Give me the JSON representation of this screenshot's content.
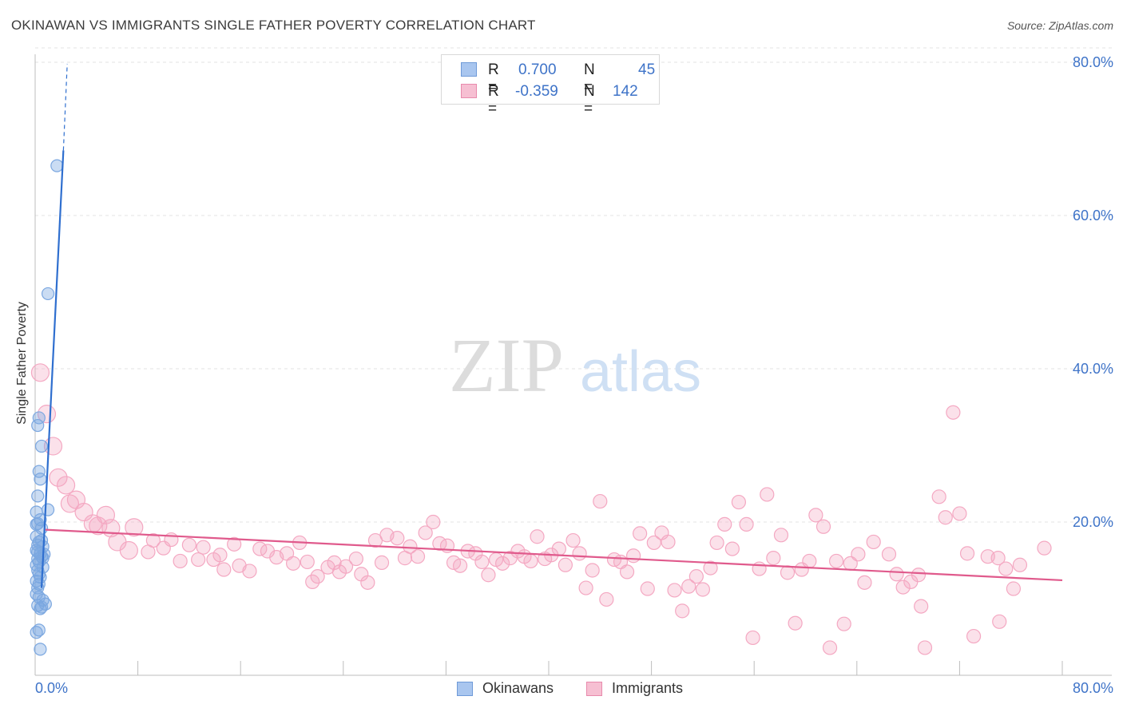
{
  "header": {
    "title": "OKINAWAN VS IMMIGRANTS SINGLE FATHER POVERTY CORRELATION CHART",
    "source": "Source: ZipAtlas.com"
  },
  "watermark": {
    "zip": "ZIP",
    "atlas": "atlas"
  },
  "legend": {
    "rows": [
      {
        "r_label": "R =",
        "r_value": "0.700",
        "n_label": "N =",
        "n_value": "45",
        "color": "#a9c6ef",
        "border": "#6f9ad8"
      },
      {
        "r_label": "R =",
        "r_value": "-0.359",
        "n_label": "N =",
        "n_value": "142",
        "color": "#f6bfd2",
        "border": "#e88aac"
      }
    ]
  },
  "bottom_legend": {
    "okinawans": "Okinawans",
    "immigrants": "Immigrants"
  },
  "chart_data": {
    "type": "scatter",
    "title": "OKINAWAN VS IMMIGRANTS SINGLE FATHER POVERTY CORRELATION CHART",
    "xlabel": "",
    "ylabel": "Single Father Poverty",
    "xlim": [
      0,
      80
    ],
    "ylim": [
      0,
      80
    ],
    "x_tick_labels": [
      "0.0%",
      "80.0%"
    ],
    "y_tick_labels": [
      "20.0%",
      "40.0%",
      "60.0%",
      "80.0%"
    ],
    "y_tick_values": [
      20,
      40,
      60,
      80
    ],
    "grid": true,
    "series": [
      {
        "name": "Okinawans",
        "color": "#7ba7e0",
        "line_color": "#2f6fcf",
        "trend": {
          "x": [
            0.5,
            2.2
          ],
          "y": [
            11.4,
            68.5
          ],
          "dashed_to": [
            2.5,
            79.8
          ]
        },
        "points": [
          [
            1.7,
            66.5
          ],
          [
            1.0,
            49.8
          ],
          [
            0.3,
            33.6
          ],
          [
            0.2,
            32.6
          ],
          [
            0.5,
            29.9
          ],
          [
            0.3,
            26.6
          ],
          [
            0.4,
            25.6
          ],
          [
            0.2,
            23.4
          ],
          [
            1.0,
            21.6
          ],
          [
            0.1,
            21.3
          ],
          [
            0.4,
            20.3
          ],
          [
            0.2,
            19.8
          ],
          [
            0.5,
            19.2
          ],
          [
            0.1,
            18.1
          ],
          [
            0.3,
            17.4
          ],
          [
            0.2,
            17.0
          ],
          [
            0.6,
            16.8
          ],
          [
            0.1,
            16.3
          ],
          [
            0.4,
            15.9
          ],
          [
            0.5,
            15.5
          ],
          [
            0.2,
            15.2
          ],
          [
            0.3,
            14.8
          ],
          [
            0.1,
            14.4
          ],
          [
            0.6,
            14.1
          ],
          [
            0.2,
            13.7
          ],
          [
            0.4,
            12.8
          ],
          [
            0.1,
            12.3
          ],
          [
            0.3,
            11.9
          ],
          [
            0.2,
            11.4
          ],
          [
            0.1,
            10.6
          ],
          [
            0.3,
            10.2
          ],
          [
            0.6,
            9.8
          ],
          [
            0.8,
            9.3
          ],
          [
            0.5,
            8.9
          ],
          [
            0.2,
            9.1
          ],
          [
            0.4,
            8.7
          ],
          [
            0.3,
            5.9
          ],
          [
            0.1,
            5.6
          ],
          [
            0.4,
            3.4
          ],
          [
            0.6,
            15.3
          ],
          [
            0.2,
            16.1
          ],
          [
            0.5,
            17.6
          ],
          [
            0.3,
            13.2
          ],
          [
            0.1,
            19.7
          ],
          [
            0.7,
            15.8
          ]
        ]
      },
      {
        "name": "Immigrants",
        "color": "#f4a8c2",
        "line_color": "#e05a8c",
        "trend": {
          "x": [
            0.8,
            80
          ],
          "y": [
            19.0,
            12.4
          ]
        },
        "points": [
          [
            0.4,
            39.5
          ],
          [
            0.9,
            34.1
          ],
          [
            1.4,
            29.9
          ],
          [
            1.8,
            25.8
          ],
          [
            2.4,
            24.8
          ],
          [
            3.2,
            22.9
          ],
          [
            2.7,
            22.4
          ],
          [
            3.8,
            21.3
          ],
          [
            4.5,
            19.8
          ],
          [
            5.5,
            20.9
          ],
          [
            5.9,
            19.2
          ],
          [
            4.9,
            19.5
          ],
          [
            7.7,
            19.3
          ],
          [
            6.4,
            17.4
          ],
          [
            7.3,
            16.3
          ],
          [
            9.2,
            17.6
          ],
          [
            8.8,
            16.1
          ],
          [
            10.0,
            16.6
          ],
          [
            10.6,
            17.7
          ],
          [
            11.3,
            14.9
          ],
          [
            12.0,
            17.0
          ],
          [
            12.7,
            15.1
          ],
          [
            13.1,
            16.7
          ],
          [
            13.9,
            15.1
          ],
          [
            14.4,
            15.7
          ],
          [
            14.7,
            13.8
          ],
          [
            15.5,
            17.1
          ],
          [
            15.9,
            14.3
          ],
          [
            16.7,
            13.6
          ],
          [
            17.5,
            16.5
          ],
          [
            18.1,
            16.2
          ],
          [
            18.8,
            15.4
          ],
          [
            19.6,
            15.9
          ],
          [
            20.1,
            14.6
          ],
          [
            20.6,
            17.3
          ],
          [
            21.2,
            14.8
          ],
          [
            21.6,
            12.2
          ],
          [
            22.0,
            12.9
          ],
          [
            22.8,
            14.1
          ],
          [
            23.3,
            14.7
          ],
          [
            23.7,
            13.5
          ],
          [
            24.2,
            14.2
          ],
          [
            25.0,
            15.2
          ],
          [
            25.4,
            13.2
          ],
          [
            25.9,
            12.1
          ],
          [
            26.5,
            17.6
          ],
          [
            27.0,
            14.7
          ],
          [
            27.4,
            18.3
          ],
          [
            28.2,
            17.9
          ],
          [
            28.8,
            15.3
          ],
          [
            29.2,
            16.8
          ],
          [
            29.8,
            15.5
          ],
          [
            30.4,
            18.6
          ],
          [
            31.0,
            20.0
          ],
          [
            31.5,
            17.2
          ],
          [
            32.1,
            16.9
          ],
          [
            32.6,
            14.7
          ],
          [
            33.1,
            14.3
          ],
          [
            33.7,
            16.2
          ],
          [
            34.3,
            15.9
          ],
          [
            34.8,
            14.8
          ],
          [
            35.3,
            13.1
          ],
          [
            35.9,
            15.1
          ],
          [
            36.4,
            14.6
          ],
          [
            37.0,
            15.3
          ],
          [
            37.6,
            16.2
          ],
          [
            38.1,
            15.5
          ],
          [
            38.6,
            14.9
          ],
          [
            39.1,
            18.1
          ],
          [
            39.7,
            15.2
          ],
          [
            40.2,
            15.7
          ],
          [
            40.8,
            16.5
          ],
          [
            41.3,
            14.4
          ],
          [
            41.9,
            17.6
          ],
          [
            42.4,
            15.9
          ],
          [
            42.9,
            11.4
          ],
          [
            43.4,
            13.7
          ],
          [
            44.0,
            22.7
          ],
          [
            44.5,
            9.9
          ],
          [
            45.1,
            15.1
          ],
          [
            45.6,
            14.8
          ],
          [
            46.1,
            13.5
          ],
          [
            46.6,
            15.6
          ],
          [
            47.1,
            18.5
          ],
          [
            47.7,
            11.3
          ],
          [
            48.2,
            17.3
          ],
          [
            48.8,
            18.6
          ],
          [
            49.3,
            17.4
          ],
          [
            49.8,
            11.1
          ],
          [
            50.4,
            8.4
          ],
          [
            50.9,
            11.6
          ],
          [
            51.5,
            12.9
          ],
          [
            52.0,
            11.2
          ],
          [
            52.6,
            14.0
          ],
          [
            53.1,
            17.3
          ],
          [
            53.7,
            19.7
          ],
          [
            54.3,
            16.5
          ],
          [
            54.8,
            22.6
          ],
          [
            55.4,
            19.7
          ],
          [
            55.9,
            4.9
          ],
          [
            56.4,
            13.9
          ],
          [
            57.0,
            23.6
          ],
          [
            57.5,
            15.3
          ],
          [
            58.1,
            18.3
          ],
          [
            58.6,
            13.4
          ],
          [
            59.2,
            6.8
          ],
          [
            59.7,
            13.8
          ],
          [
            60.3,
            14.9
          ],
          [
            60.8,
            20.9
          ],
          [
            61.4,
            19.4
          ],
          [
            61.9,
            3.6
          ],
          [
            62.4,
            14.9
          ],
          [
            63.5,
            14.6
          ],
          [
            63.0,
            6.7
          ],
          [
            64.1,
            15.8
          ],
          [
            64.6,
            12.1
          ],
          [
            65.3,
            17.4
          ],
          [
            66.5,
            15.8
          ],
          [
            67.1,
            13.2
          ],
          [
            67.6,
            11.5
          ],
          [
            68.2,
            12.2
          ],
          [
            68.8,
            13.1
          ],
          [
            69.3,
            3.6
          ],
          [
            70.4,
            23.3
          ],
          [
            70.9,
            20.6
          ],
          [
            71.5,
            34.3
          ],
          [
            72.0,
            21.1
          ],
          [
            72.6,
            15.9
          ],
          [
            73.1,
            5.1
          ],
          [
            74.2,
            15.5
          ],
          [
            75.1,
            7.0
          ],
          [
            75.6,
            13.9
          ],
          [
            76.2,
            11.3
          ],
          [
            76.7,
            14.4
          ],
          [
            78.6,
            16.6
          ],
          [
            75.0,
            15.3
          ],
          [
            69.0,
            9.0
          ]
        ]
      }
    ]
  }
}
